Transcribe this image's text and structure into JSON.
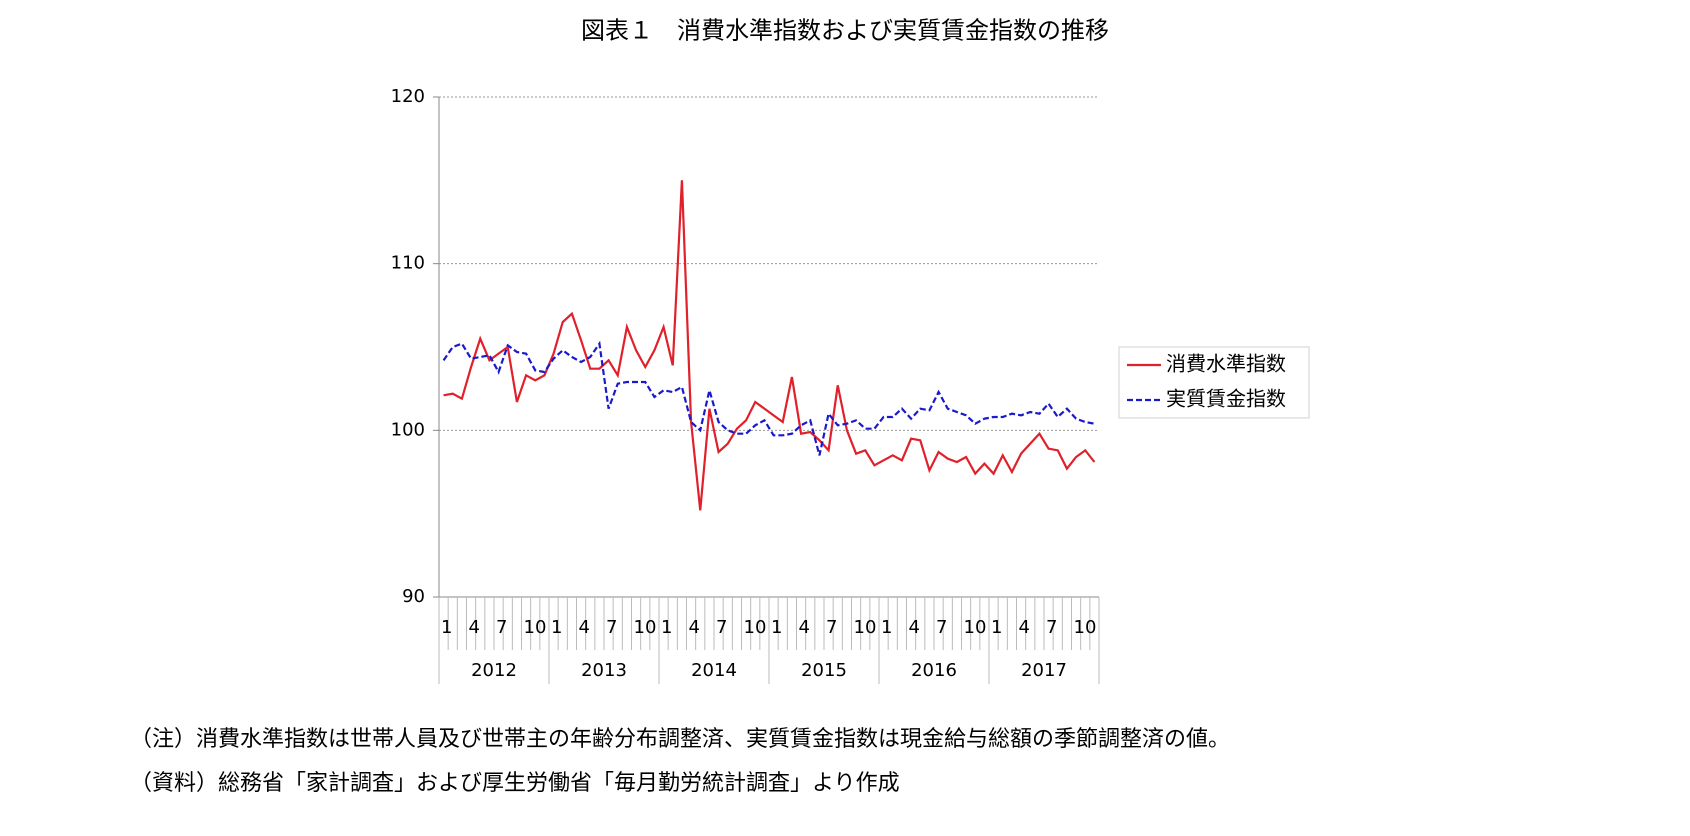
{
  "chart_data": {
    "type": "line",
    "title": "図表１　消費水準指数および実質賃金指数の推移",
    "categories": [
      "1",
      null,
      null,
      "4",
      null,
      null,
      "7",
      null,
      null,
      "10",
      null,
      null,
      "1",
      null,
      null,
      "4",
      null,
      null,
      "7",
      null,
      null,
      "10",
      null,
      null,
      "1",
      null,
      null,
      "4",
      null,
      null,
      "7",
      null,
      null,
      "10",
      null,
      null,
      "1",
      null,
      null,
      "4",
      null,
      null,
      "7",
      null,
      null,
      "10",
      null,
      null,
      "1",
      null,
      null,
      "4",
      null,
      null,
      "7",
      null,
      null,
      "10",
      null,
      null,
      "1",
      null,
      null,
      "4",
      null,
      null,
      "7",
      null,
      null,
      "10",
      null,
      null
    ],
    "years": [
      "2012",
      "2013",
      "2014",
      "2015",
      "2016",
      "2017"
    ],
    "ylim": [
      90,
      120
    ],
    "yticks": [
      90,
      100,
      110,
      120
    ],
    "grid": true,
    "legend": "right",
    "series": [
      {
        "name": "消費水準指数",
        "color": "#e0202a",
        "style": "solid",
        "values": [
          102.1,
          102.2,
          101.9,
          103.8,
          105.5,
          104.2,
          104.6,
          105.0,
          101.7,
          103.3,
          103.0,
          103.3,
          104.6,
          106.5,
          107.0,
          105.4,
          103.7,
          103.7,
          104.2,
          103.3,
          106.2,
          104.8,
          103.8,
          104.8,
          106.2,
          103.9,
          115.0,
          100.5,
          95.2,
          101.3,
          98.7,
          99.2,
          100.1,
          100.6,
          101.7,
          101.3,
          100.9,
          100.5,
          103.2,
          99.8,
          99.9,
          99.4,
          98.8,
          102.7,
          100.0,
          98.6,
          98.8,
          97.9,
          98.2,
          98.5,
          98.2,
          99.5,
          99.4,
          97.6,
          98.7,
          98.3,
          98.1,
          98.4,
          97.4,
          98.0,
          97.4,
          98.5,
          97.5,
          98.6,
          99.2,
          99.8,
          98.9,
          98.8,
          97.7,
          98.4,
          98.8,
          98.1
        ]
      },
      {
        "name": "実質賃金指数",
        "color": "#1a1acc",
        "style": "dashed",
        "values": [
          104.2,
          105.0,
          105.2,
          104.3,
          104.4,
          104.5,
          103.5,
          105.1,
          104.7,
          104.6,
          103.6,
          103.5,
          104.3,
          104.8,
          104.4,
          104.1,
          104.4,
          105.2,
          101.3,
          102.8,
          102.9,
          102.9,
          102.9,
          102.0,
          102.4,
          102.3,
          102.6,
          100.5,
          100.0,
          102.4,
          100.5,
          100.0,
          99.8,
          99.8,
          100.3,
          100.6,
          99.7,
          99.7,
          99.8,
          100.3,
          100.6,
          98.5,
          101.0,
          100.3,
          100.4,
          100.6,
          100.1,
          100.1,
          100.8,
          100.8,
          101.3,
          100.7,
          101.3,
          101.2,
          102.3,
          101.3,
          101.1,
          100.9,
          100.4,
          100.7,
          100.8,
          100.8,
          101.0,
          100.9,
          101.1,
          101.0,
          101.6,
          100.8,
          101.3,
          100.7,
          100.5,
          100.4
        ]
      }
    ]
  },
  "notes": [
    "（注）消費水準指数は世帯人員及び世帯主の年齢分布調整済、実質賃金指数は現金給与総額の季節調整済の値。",
    "（資料）総務省「家計調査」および厚生労働省「毎月勤労統計調査」より作成"
  ]
}
